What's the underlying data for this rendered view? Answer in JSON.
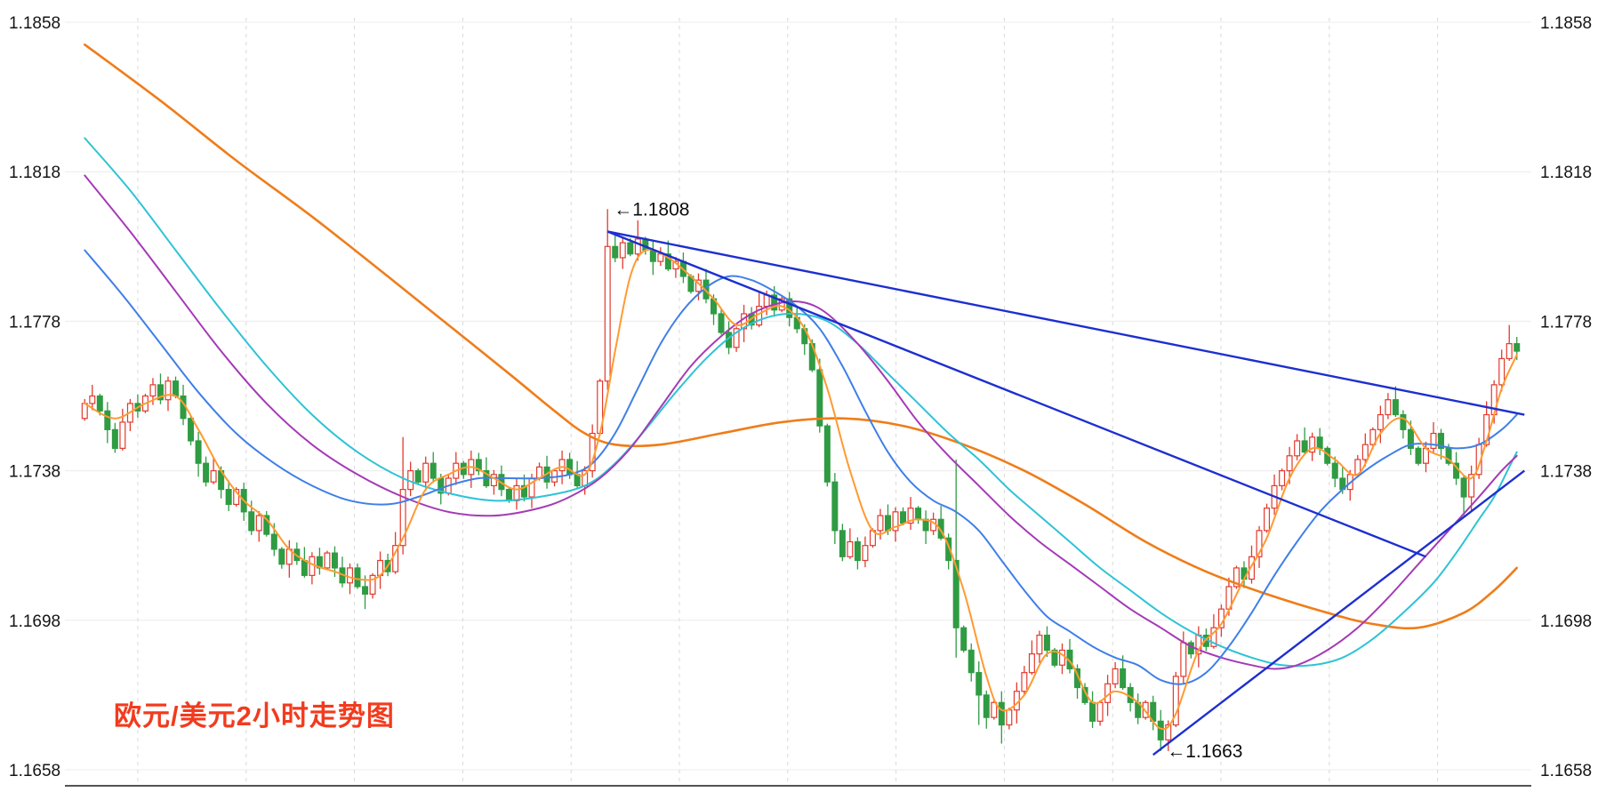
{
  "chart_data": {
    "type": "candlestick",
    "title": "欧元/美元2小时走势图",
    "title_color": "#f23b1e",
    "y_ticks": [
      "1.1858",
      "1.1818",
      "1.1778",
      "1.1738",
      "1.1698",
      "1.1658"
    ],
    "y_range": [
      1.1658,
      1.1858
    ],
    "grid": {
      "h_lines": [
        1.1858,
        1.1818,
        1.1778,
        1.1738,
        1.1698,
        1.1658
      ],
      "v_dashed": true
    },
    "annotations": [
      {
        "text": "←1.1808",
        "index": 69,
        "price": 1.1808,
        "position": "right-of-high"
      },
      {
        "text": "←1.1663",
        "index": 142,
        "price": 1.1663,
        "position": "right-of-low"
      }
    ],
    "colors": {
      "up": "#e23a2e",
      "down": "#2f9b43",
      "trendline": "#1d2fd0",
      "grid_h": "#ececec",
      "grid_v": "#d8d8d8",
      "axis": "#1a1a1a"
    },
    "first_open": 1.1752,
    "closes": [
      1.1756,
      1.1758,
      1.1754,
      1.1749,
      1.1744,
      1.1751,
      1.1756,
      1.1754,
      1.1758,
      1.1761,
      1.1757,
      1.1762,
      1.1758,
      1.1752,
      1.1746,
      1.174,
      1.1735,
      1.1738,
      1.1733,
      1.1729,
      1.1733,
      1.1727,
      1.1722,
      1.1726,
      1.1721,
      1.1717,
      1.1713,
      1.1717,
      1.1714,
      1.171,
      1.1715,
      1.1712,
      1.1716,
      1.1712,
      1.1708,
      1.1712,
      1.1707,
      1.1705,
      1.171,
      1.1714,
      1.1711,
      1.1718,
      1.1733,
      1.1738,
      1.1735,
      1.174,
      1.1736,
      1.1732,
      1.1736,
      1.174,
      1.1737,
      1.1741,
      1.1738,
      1.1734,
      1.1737,
      1.1733,
      1.173,
      1.1734,
      1.1731,
      1.1736,
      1.1739,
      1.1735,
      1.1738,
      1.1741,
      1.1737,
      1.1734,
      1.1738,
      1.1748,
      1.1762,
      1.1798,
      1.1795,
      1.1799,
      1.1796,
      1.18,
      1.1797,
      1.1794,
      1.1796,
      1.1792,
      1.1794,
      1.179,
      1.1786,
      1.1789,
      1.1784,
      1.178,
      1.1775,
      1.1771,
      1.1776,
      1.178,
      1.1777,
      1.1782,
      1.1785,
      1.1781,
      1.1784,
      1.1779,
      1.1776,
      1.1772,
      1.1765,
      1.175,
      1.1735,
      1.1722,
      1.1715,
      1.1719,
      1.1714,
      1.1718,
      1.1722,
      1.1726,
      1.1722,
      1.1727,
      1.1724,
      1.1728,
      1.1725,
      1.1722,
      1.1725,
      1.172,
      1.1714,
      1.1696,
      1.169,
      1.1684,
      1.1678,
      1.1672,
      1.1676,
      1.167,
      1.1674,
      1.1679,
      1.1684,
      1.1689,
      1.1694,
      1.169,
      1.1686,
      1.169,
      1.1685,
      1.168,
      1.1676,
      1.1671,
      1.1676,
      1.1681,
      1.1685,
      1.168,
      1.1676,
      1.1672,
      1.1676,
      1.1671,
      1.1666,
      1.167,
      1.1683,
      1.1692,
      1.1689,
      1.1694,
      1.1691,
      1.1696,
      1.1701,
      1.1707,
      1.1712,
      1.1709,
      1.1715,
      1.1722,
      1.1728,
      1.1734,
      1.1738,
      1.1742,
      1.1746,
      1.1743,
      1.1747,
      1.1744,
      1.174,
      1.1736,
      1.1733,
      1.1737,
      1.1741,
      1.1745,
      1.1749,
      1.1753,
      1.1757,
      1.1753,
      1.1749,
      1.1744,
      1.174,
      1.1744,
      1.1748,
      1.1744,
      1.174,
      1.1736,
      1.1731,
      1.1737,
      1.1745,
      1.1753,
      1.1761,
      1.1768,
      1.1772,
      1.177
    ],
    "wick_overrides": {
      "37": {
        "low": 1.1701
      },
      "42": {
        "high": 1.1747
      },
      "69": {
        "high": 1.1808
      },
      "73": {
        "high": 1.1805
      },
      "115": {
        "high": 1.1741,
        "low": 1.1688
      },
      "118": {
        "low": 1.167
      },
      "121": {
        "low": 1.1665
      },
      "142": {
        "low": 1.1663
      },
      "182": {
        "low": 1.1726
      },
      "188": {
        "high": 1.1777
      }
    },
    "moving_averages": [
      {
        "name": "slow-orange",
        "color": "#ef7d1a",
        "width": 2.6,
        "points": [
          [
            0,
            1.1852
          ],
          [
            10,
            1.1837
          ],
          [
            20,
            1.1821
          ],
          [
            30,
            1.1806
          ],
          [
            40,
            1.179
          ],
          [
            48,
            1.1777
          ],
          [
            56,
            1.1764
          ],
          [
            62,
            1.1754
          ],
          [
            66,
            1.1748
          ],
          [
            70,
            1.1745
          ],
          [
            76,
            1.1745
          ],
          [
            84,
            1.1748
          ],
          [
            92,
            1.1751
          ],
          [
            100,
            1.1752
          ],
          [
            108,
            1.175
          ],
          [
            116,
            1.1745
          ],
          [
            124,
            1.1738
          ],
          [
            132,
            1.1729
          ],
          [
            140,
            1.1719
          ],
          [
            148,
            1.1711
          ],
          [
            156,
            1.1705
          ],
          [
            164,
            1.17
          ],
          [
            170,
            1.1697
          ],
          [
            176,
            1.1696
          ],
          [
            182,
            1.17
          ],
          [
            186,
            1.1706
          ],
          [
            189,
            1.1712
          ]
        ]
      },
      {
        "name": "cyan",
        "color": "#2ec3d6",
        "width": 2,
        "points": [
          [
            0,
            1.1827
          ],
          [
            6,
            1.1813
          ],
          [
            12,
            1.1797
          ],
          [
            18,
            1.1781
          ],
          [
            24,
            1.1766
          ],
          [
            30,
            1.1753
          ],
          [
            36,
            1.1743
          ],
          [
            42,
            1.1736
          ],
          [
            48,
            1.1732
          ],
          [
            54,
            1.173
          ],
          [
            60,
            1.1731
          ],
          [
            66,
            1.1734
          ],
          [
            70,
            1.174
          ],
          [
            74,
            1.1749
          ],
          [
            78,
            1.1759
          ],
          [
            82,
            1.1768
          ],
          [
            86,
            1.1775
          ],
          [
            90,
            1.1779
          ],
          [
            94,
            1.178
          ],
          [
            98,
            1.1778
          ],
          [
            102,
            1.1772
          ],
          [
            106,
            1.1764
          ],
          [
            110,
            1.1756
          ],
          [
            114,
            1.1748
          ],
          [
            118,
            1.1741
          ],
          [
            122,
            1.1733
          ],
          [
            126,
            1.1726
          ],
          [
            130,
            1.1719
          ],
          [
            134,
            1.1712
          ],
          [
            138,
            1.1706
          ],
          [
            142,
            1.17
          ],
          [
            146,
            1.1695
          ],
          [
            150,
            1.1691
          ],
          [
            154,
            1.1688
          ],
          [
            158,
            1.1686
          ],
          [
            162,
            1.1686
          ],
          [
            166,
            1.1688
          ],
          [
            170,
            1.1693
          ],
          [
            174,
            1.17
          ],
          [
            178,
            1.1708
          ],
          [
            181,
            1.1716
          ],
          [
            184,
            1.1725
          ],
          [
            186,
            1.1731
          ],
          [
            188,
            1.1739
          ],
          [
            189,
            1.1743
          ]
        ]
      },
      {
        "name": "purple",
        "color": "#a43bb5",
        "width": 2,
        "points": [
          [
            0,
            1.1817
          ],
          [
            6,
            1.1802
          ],
          [
            12,
            1.1786
          ],
          [
            18,
            1.177
          ],
          [
            24,
            1.1756
          ],
          [
            30,
            1.1745
          ],
          [
            36,
            1.1737
          ],
          [
            42,
            1.1731
          ],
          [
            48,
            1.1727
          ],
          [
            54,
            1.1726
          ],
          [
            60,
            1.1728
          ],
          [
            64,
            1.1731
          ],
          [
            68,
            1.1736
          ],
          [
            72,
            1.1744
          ],
          [
            76,
            1.1755
          ],
          [
            80,
            1.1766
          ],
          [
            84,
            1.1774
          ],
          [
            88,
            1.178
          ],
          [
            92,
            1.1783
          ],
          [
            95,
            1.1783
          ],
          [
            98,
            1.178
          ],
          [
            102,
            1.1772
          ],
          [
            106,
            1.1762
          ],
          [
            110,
            1.1751
          ],
          [
            114,
            1.1742
          ],
          [
            118,
            1.1734
          ],
          [
            122,
            1.1726
          ],
          [
            126,
            1.1719
          ],
          [
            130,
            1.1713
          ],
          [
            134,
            1.1707
          ],
          [
            138,
            1.1701
          ],
          [
            142,
            1.1696
          ],
          [
            146,
            1.1691
          ],
          [
            150,
            1.1688
          ],
          [
            154,
            1.1686
          ],
          [
            157,
            1.1685
          ],
          [
            160,
            1.1686
          ],
          [
            164,
            1.169
          ],
          [
            168,
            1.1696
          ],
          [
            172,
            1.1704
          ],
          [
            176,
            1.1713
          ],
          [
            180,
            1.1722
          ],
          [
            184,
            1.1731
          ],
          [
            187,
            1.1738
          ],
          [
            189,
            1.1742
          ]
        ]
      },
      {
        "name": "blue",
        "color": "#3f7fe8",
        "width": 2,
        "points": [
          [
            0,
            1.1797
          ],
          [
            5,
            1.1785
          ],
          [
            10,
            1.1772
          ],
          [
            15,
            1.1759
          ],
          [
            20,
            1.1748
          ],
          [
            25,
            1.174
          ],
          [
            30,
            1.1734
          ],
          [
            35,
            1.173
          ],
          [
            40,
            1.1729
          ],
          [
            44,
            1.1731
          ],
          [
            48,
            1.1734
          ],
          [
            52,
            1.1736
          ],
          [
            56,
            1.1736
          ],
          [
            60,
            1.1736
          ],
          [
            64,
            1.1737
          ],
          [
            67,
            1.174
          ],
          [
            70,
            1.1748
          ],
          [
            73,
            1.176
          ],
          [
            76,
            1.1772
          ],
          [
            79,
            1.1781
          ],
          [
            82,
            1.1787
          ],
          [
            85,
            1.179
          ],
          [
            88,
            1.1789
          ],
          [
            91,
            1.1786
          ],
          [
            94,
            1.1782
          ],
          [
            97,
            1.1776
          ],
          [
            100,
            1.1766
          ],
          [
            103,
            1.1754
          ],
          [
            106,
            1.1743
          ],
          [
            109,
            1.1735
          ],
          [
            112,
            1.173
          ],
          [
            115,
            1.1727
          ],
          [
            118,
            1.1722
          ],
          [
            121,
            1.1714
          ],
          [
            124,
            1.1706
          ],
          [
            127,
            1.1699
          ],
          [
            130,
            1.1695
          ],
          [
            133,
            1.1691
          ],
          [
            136,
            1.1688
          ],
          [
            139,
            1.1686
          ],
          [
            142,
            1.1682
          ],
          [
            145,
            1.1681
          ],
          [
            148,
            1.1684
          ],
          [
            151,
            1.1691
          ],
          [
            154,
            1.17
          ],
          [
            157,
            1.171
          ],
          [
            160,
            1.1719
          ],
          [
            163,
            1.1727
          ],
          [
            166,
            1.1733
          ],
          [
            169,
            1.1738
          ],
          [
            172,
            1.1742
          ],
          [
            175,
            1.1745
          ],
          [
            178,
            1.1745
          ],
          [
            181,
            1.1744
          ],
          [
            184,
            1.1745
          ],
          [
            187,
            1.1749
          ],
          [
            189,
            1.1753
          ]
        ]
      },
      {
        "name": "fast-orange",
        "color": "#ff9a30",
        "width": 2,
        "points": [
          [
            0,
            1.1756
          ],
          [
            4,
            1.1752
          ],
          [
            8,
            1.1756
          ],
          [
            12,
            1.1758
          ],
          [
            15,
            1.1749
          ],
          [
            18,
            1.1738
          ],
          [
            21,
            1.173
          ],
          [
            24,
            1.1725
          ],
          [
            27,
            1.1717
          ],
          [
            30,
            1.1713
          ],
          [
            33,
            1.1711
          ],
          [
            36,
            1.1709
          ],
          [
            39,
            1.171
          ],
          [
            42,
            1.172
          ],
          [
            45,
            1.1733
          ],
          [
            48,
            1.1737
          ],
          [
            51,
            1.1739
          ],
          [
            54,
            1.1736
          ],
          [
            57,
            1.1733
          ],
          [
            60,
            1.1736
          ],
          [
            63,
            1.1739
          ],
          [
            66,
            1.1737
          ],
          [
            68,
            1.1748
          ],
          [
            70,
            1.177
          ],
          [
            72,
            1.179
          ],
          [
            74,
            1.1797
          ],
          [
            77,
            1.1795
          ],
          [
            80,
            1.179
          ],
          [
            83,
            1.1784
          ],
          [
            86,
            1.1777
          ],
          [
            89,
            1.178
          ],
          [
            92,
            1.1782
          ],
          [
            95,
            1.1776
          ],
          [
            98,
            1.176
          ],
          [
            101,
            1.1738
          ],
          [
            104,
            1.1722
          ],
          [
            107,
            1.1723
          ],
          [
            110,
            1.1725
          ],
          [
            113,
            1.1722
          ],
          [
            116,
            1.1706
          ],
          [
            119,
            1.1683
          ],
          [
            121,
            1.1674
          ],
          [
            124,
            1.1678
          ],
          [
            127,
            1.1689
          ],
          [
            130,
            1.1687
          ],
          [
            133,
            1.1676
          ],
          [
            136,
            1.1679
          ],
          [
            139,
            1.1676
          ],
          [
            142,
            1.1669
          ],
          [
            144,
            1.1673
          ],
          [
            147,
            1.169
          ],
          [
            150,
            1.1697
          ],
          [
            153,
            1.1709
          ],
          [
            156,
            1.172
          ],
          [
            159,
            1.1736
          ],
          [
            162,
            1.1744
          ],
          [
            165,
            1.1741
          ],
          [
            168,
            1.1737
          ],
          [
            171,
            1.1748
          ],
          [
            174,
            1.1752
          ],
          [
            177,
            1.1744
          ],
          [
            180,
            1.1741
          ],
          [
            183,
            1.1736
          ],
          [
            185,
            1.1746
          ],
          [
            187,
            1.176
          ],
          [
            189,
            1.1769
          ]
        ]
      }
    ],
    "trendlines": [
      {
        "from": [
          69,
          1.1802
        ],
        "to": [
          190,
          1.1753
        ]
      },
      {
        "from": [
          69,
          1.1802
        ],
        "to": [
          177,
          1.1715
        ]
      },
      {
        "from": [
          141,
          1.1662
        ],
        "to": [
          190,
          1.1738
        ]
      }
    ]
  }
}
